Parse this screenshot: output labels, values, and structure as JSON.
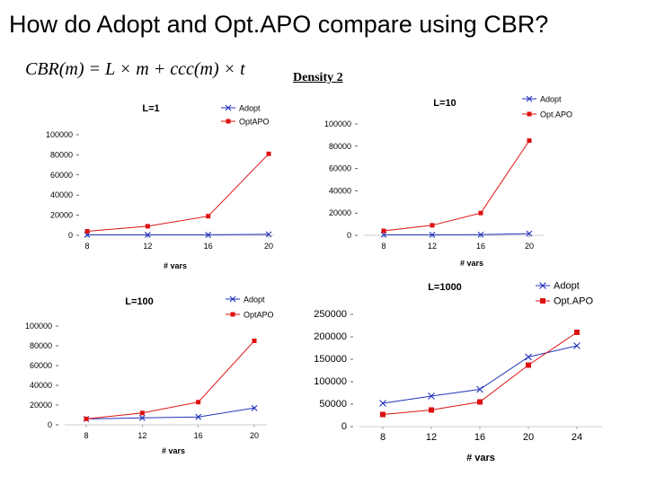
{
  "slide": {
    "title": "How do Adopt and Opt.APO compare using CBR?",
    "formula": "CBR(m) = L × m + ccc(m) × t",
    "density_label": "Density 2"
  },
  "colors": {
    "adopt": "#2233bb",
    "optapo": "#dd1111"
  },
  "chart_data": [
    {
      "type": "line",
      "title": "L=1",
      "xlabel": "# vars",
      "ylabel": "",
      "categories": [
        "8",
        "12",
        "16",
        "20"
      ],
      "yticks": [
        "0",
        "20000",
        "40000",
        "60000",
        "80000",
        "100000"
      ],
      "ylim": [
        0,
        100000
      ],
      "legend_position": "top-right",
      "series": [
        {
          "name": "Adopt",
          "marker": "x",
          "values": [
            500,
            500,
            500,
            1000
          ]
        },
        {
          "name": "OptAPO",
          "marker": "square",
          "values": [
            4000,
            9000,
            19000,
            81000
          ]
        }
      ]
    },
    {
      "type": "line",
      "title": "L=10",
      "xlabel": "# vars",
      "ylabel": "",
      "categories": [
        "8",
        "12",
        "16",
        "20"
      ],
      "yticks": [
        "0",
        "20000",
        "40000",
        "60000",
        "80000",
        "100000"
      ],
      "ylim": [
        0,
        100000
      ],
      "legend_position": "top-right",
      "series": [
        {
          "name": "Adopt",
          "marker": "x",
          "values": [
            500,
            500,
            600,
            1500
          ]
        },
        {
          "name": "Opt.APO",
          "marker": "square",
          "values": [
            4000,
            9000,
            20000,
            85000
          ]
        }
      ]
    },
    {
      "type": "line",
      "title": "L=100",
      "xlabel": "# vars",
      "ylabel": "",
      "categories": [
        "8",
        "12",
        "16",
        "20"
      ],
      "yticks": [
        "0",
        "20000",
        "40000",
        "60000",
        "80000",
        "100000"
      ],
      "ylim": [
        0,
        100000
      ],
      "legend_position": "top-right",
      "series": [
        {
          "name": "Adopt",
          "marker": "x",
          "values": [
            6000,
            7000,
            8000,
            17000
          ]
        },
        {
          "name": "OptAPO",
          "marker": "square",
          "values": [
            6000,
            12000,
            23000,
            85000
          ]
        }
      ]
    },
    {
      "type": "line",
      "title": "L=1000",
      "xlabel": "# vars",
      "ylabel": "",
      "categories": [
        "8",
        "12",
        "16",
        "20",
        "24"
      ],
      "yticks": [
        "0",
        "50000",
        "100000",
        "150000",
        "200000",
        "250000"
      ],
      "ylim": [
        0,
        250000
      ],
      "legend_position": "top-right",
      "series": [
        {
          "name": "Adopt",
          "marker": "x",
          "values": [
            52000,
            68000,
            83000,
            155000,
            180000
          ]
        },
        {
          "name": "Opt.APO",
          "marker": "square",
          "values": [
            27000,
            37000,
            55000,
            137000,
            210000
          ]
        }
      ]
    }
  ]
}
